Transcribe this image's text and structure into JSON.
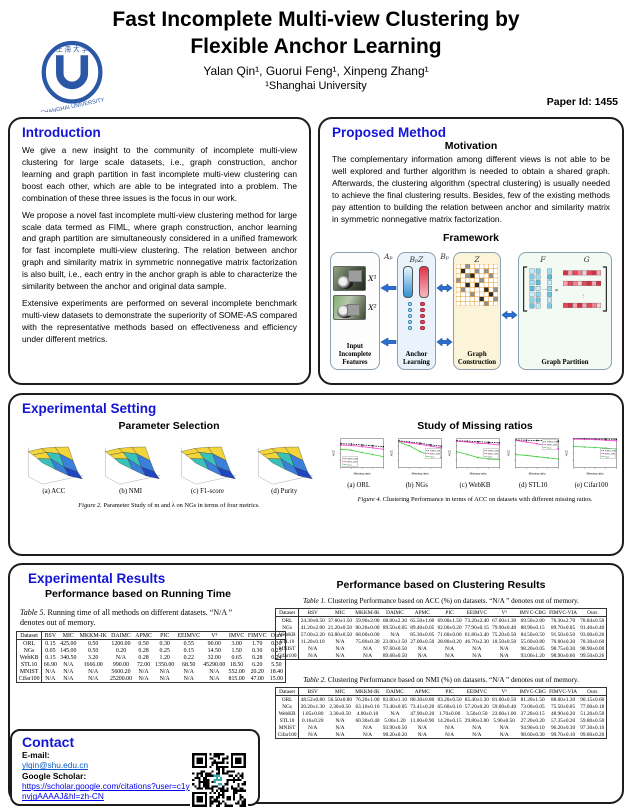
{
  "header": {
    "title_line1": "Fast Incomplete Multi-view Clustering by",
    "title_line2": "Flexible Anchor Learning",
    "authors": "Yalan Qin¹, Guorui Feng¹, Xinpeng Zhang¹",
    "affiliation": "¹Shanghai University",
    "paper_id": "Paper Id: 1455",
    "logo_name": "Shanghai University"
  },
  "introduction": {
    "heading": "Introduction",
    "paragraphs": [
      "We give a new insight to the community of incomplete multi-view clustering for large scale datasets, i.e., graph construction, anchor learning and graph partition in fast incomplete multi-view clustering can boost each other, which are able to be integrated into a problem. The combination of these three issues is the focus in our work.",
      "We propose a novel fast incomplete multi-view clustering method for large scale data termed as FIML, where graph construction, anchor learning and graph partition are simultaneously considered in a unified framework for fast incomplete multi-view clustering. The relation between anchor graph and similarity matrix in symmetric nonnegative matrix factorization is also built, i.e., each entry in the anchor graph is able to characterize the similarity between the anchor and original data sample.",
      "Extensive experiments are performed on several incomplete benchmark multi-view datasets to demonstrate the superiority of SOME-AS compared with the representative methods based on effectiveness and efficiency under different metrics."
    ]
  },
  "proposed_method": {
    "heading": "Proposed Method",
    "motivation_heading": "Motivation",
    "motivation_text": "The complementary information among different views is not able to be well explored and further algorithm is needed to obtain a shared graph. Afterwards, the clustering algorithm (spectral clustering) is usually needed to achieve the final clustering results. Besides, few of the existing methods pay attention to building the relation between anchor and similarity matrix in symmetric nonnegative matrix factorization.",
    "framework_heading": "Framework",
    "framework": {
      "view_labels": [
        "X¹",
        "X²"
      ],
      "arrow_labels": [
        "Aₚ",
        "Bₚ"
      ],
      "anchor_top_label": "BₚZ",
      "graph_top_label": "Z",
      "partition_top_labels": [
        "F",
        "G"
      ],
      "box_labels": [
        "Input Incomplete Features",
        "Anchor Learning",
        "Graph Construction",
        "Graph Partition"
      ]
    }
  },
  "experimental_setting": {
    "heading": "Experimental Setting",
    "parameter_selection": {
      "heading": "Parameter Selection",
      "plot_captions": [
        "(a) ACC",
        "(b) NMI",
        "(c) F1-score",
        "(d) Purity"
      ],
      "figure_label": "Figure 2.",
      "figure_text": "Parameter Study of m and λ on NGs in terms of four metrics."
    },
    "missing_ratios": {
      "heading": "Study of Missing ratios",
      "plot_captions": [
        "(a) ORL",
        "(b) NGs",
        "(c) WebKB",
        "(d) STL10",
        "(e) Cifar100"
      ],
      "figure_label": "Figure 4.",
      "figure_text": "Clustering Performance in terms of ACC on datasets with different missing ratios."
    }
  },
  "chart_data": [
    {
      "type": "line",
      "title": "(a) ORL",
      "xlabel": "Missing ratio",
      "ylabel": "ACC",
      "ylim": [
        0,
        1
      ],
      "x": [
        0.1,
        0.3,
        0.5,
        0.7,
        0.9
      ],
      "legend_pos": "bl",
      "series": [
        {
          "name": "FIMVC-VIA",
          "color": "#111111",
          "dash": true,
          "values": [
            0.82,
            0.81,
            0.78,
            0.75,
            0.72
          ]
        },
        {
          "name": "IMVC-CBG",
          "color": "#ee3ccc",
          "dash": false,
          "values": [
            0.78,
            0.76,
            0.72,
            0.68,
            0.63
          ]
        },
        {
          "name": "Ours",
          "color": "#44cc44",
          "dash": false,
          "values": [
            0.63,
            0.6,
            0.52,
            0.45,
            0.38
          ]
        }
      ]
    },
    {
      "type": "line",
      "title": "(b) NGs",
      "xlabel": "Missing ratio",
      "ylabel": "ACC",
      "ylim": [
        0,
        1
      ],
      "x": [
        0.1,
        0.3,
        0.5,
        0.7,
        0.9
      ],
      "legend_pos": "mr",
      "series": [
        {
          "name": "FIMVC-VIA",
          "color": "#111111",
          "dash": true,
          "values": [
            0.92,
            0.88,
            0.84,
            0.78,
            0.74
          ]
        },
        {
          "name": "IMVC-CBG",
          "color": "#ee3ccc",
          "dash": false,
          "values": [
            0.9,
            0.85,
            0.8,
            0.74,
            0.68
          ]
        },
        {
          "name": "Ours",
          "color": "#44cc44",
          "dash": false,
          "values": [
            0.88,
            0.75,
            0.55,
            0.42,
            0.35
          ]
        }
      ]
    },
    {
      "type": "line",
      "title": "(c) WebKB",
      "xlabel": "Missing ratio",
      "ylabel": "ACC",
      "ylim": [
        0,
        1
      ],
      "x": [
        0.1,
        0.3,
        0.5,
        0.7,
        0.9
      ],
      "legend_pos": "mr",
      "series": [
        {
          "name": "FIMVC-VIA",
          "color": "#111111",
          "dash": true,
          "values": [
            0.92,
            0.91,
            0.89,
            0.87,
            0.85
          ]
        },
        {
          "name": "IMVC-CBG",
          "color": "#ee3ccc",
          "dash": false,
          "values": [
            0.9,
            0.88,
            0.84,
            0.82,
            0.78
          ]
        },
        {
          "name": "Ours",
          "color": "#44cc44",
          "dash": false,
          "values": [
            0.55,
            0.45,
            0.35,
            0.3,
            0.28
          ]
        }
      ]
    },
    {
      "type": "line",
      "title": "(d) STL10",
      "xlabel": "Missing ratio",
      "ylabel": "ACC",
      "ylim": [
        0,
        1
      ],
      "x": [
        0.1,
        0.3,
        0.5,
        0.7,
        0.9
      ],
      "legend_pos": "tr",
      "series": [
        {
          "name": "FIMVC-VIA",
          "color": "#111111",
          "dash": true,
          "values": [
            0.95,
            0.94,
            0.93,
            0.92,
            0.91
          ]
        },
        {
          "name": "IMVC-CBG",
          "color": "#ee3ccc",
          "dash": false,
          "values": [
            0.93,
            0.88,
            0.82,
            0.74,
            0.65
          ]
        },
        {
          "name": "Ours",
          "color": "#44cc44",
          "dash": false,
          "values": [
            0.45,
            0.42,
            0.38,
            0.34,
            0.3
          ]
        }
      ]
    },
    {
      "type": "line",
      "title": "(e) Cifar100",
      "xlabel": "Missing ratio",
      "ylabel": "ACC",
      "ylim": [
        0,
        1
      ],
      "x": [
        0.1,
        0.3,
        0.5,
        0.7,
        0.9
      ],
      "legend_pos": "mr",
      "series": [
        {
          "name": "FIMVC-VIA",
          "color": "#111111",
          "dash": true,
          "values": [
            0.99,
            0.99,
            0.98,
            0.98,
            0.97
          ]
        },
        {
          "name": "IMVC-CBG",
          "color": "#ee3ccc",
          "dash": false,
          "values": [
            0.98,
            0.97,
            0.96,
            0.94,
            0.92
          ]
        },
        {
          "name": "Ours",
          "color": "#44cc44",
          "dash": false,
          "values": [
            0.73,
            0.71,
            0.69,
            0.67,
            0.64
          ]
        }
      ]
    },
    {
      "type": "3d-surface",
      "title": "Parameter Study of m and λ on NGs",
      "subplots": [
        "(a) ACC",
        "(b) NMI",
        "(c) F1-score",
        "(d) Purity"
      ]
    }
  ],
  "experimental_results": {
    "heading": "Experimental Results",
    "running_time": {
      "heading": "Performance based on Running Time",
      "caption_label": "Table 5.",
      "caption_text": "Running time of all methods on different datasets. “N/A ” denotes out of memory.",
      "table": {
        "headers": [
          "Dataset",
          "BSV",
          "MIC",
          "MKKM-IK",
          "DAIMC",
          "APMC",
          "PIC",
          "EEIMVC",
          "V³",
          "IMVC",
          "FIMVC",
          "Ours"
        ],
        "rows": [
          [
            "ORL",
            "0.15",
            "425.00",
            "0.50",
            "1200.00",
            "0.50",
            "0.30",
            "0.55",
            "90.00",
            "3.00",
            "1.70",
            "0.30"
          ],
          [
            "NGs",
            "0.05",
            "145.00",
            "0.50",
            "0.20",
            "0.28",
            "0.25",
            "0.15",
            "14.50",
            "1.50",
            "0.30",
            "0.25"
          ],
          [
            "WebKB",
            "0.15",
            "340.50",
            "3.20",
            "N/A",
            "0.28",
            "1.20",
            "0.22",
            "32.00",
            "0.65",
            "0.28",
            "0.24"
          ],
          [
            "STL10",
            "66.90",
            "N/A",
            "1666.00",
            "990.00",
            "72.00",
            "1350.00",
            "68.50",
            "45290.00",
            "18.50",
            "6.20",
            "5.50"
          ],
          [
            "MNIST",
            "N/A",
            "N/A",
            "N/A",
            "5600.20",
            "N/A",
            "N/A",
            "N/A",
            "N/A",
            "552.00",
            "20.20",
            "18.40"
          ],
          [
            "Cifar100",
            "N/A",
            "N/A",
            "N/A",
            "25200.00",
            "N/A",
            "N/A",
            "N/A",
            "N/A",
            "815.00",
            "47.00",
            "15.00"
          ]
        ]
      }
    },
    "clustering_results": {
      "heading": "Performance based on Clustering Results",
      "table1": {
        "caption_label": "Table 1.",
        "caption_text": "Clustering Performance based on ACC (%) on datasets. “N/A ” denotes out of memory.",
        "headers": [
          "Dataset",
          "BSV",
          "MIC",
          "MKKM-IK",
          "DAIMC",
          "APMC",
          "PIC",
          "EEIMVC",
          "V³",
          "IMVC-CBG",
          "FIMVC-VIA",
          "Ours"
        ],
        "rows": [
          [
            "ORL",
            "24.30±0.50",
            "37.60±1.50",
            "59.90±2.00",
            "68.00±2.30",
            "65.50±1.60",
            "69.00±1.50",
            "73.20±2.40",
            "67.00±1.30",
            "69.50±2.00",
            "76.30±2.70",
            "78.84±0.50"
          ],
          [
            "NGs",
            "41.20±2.00",
            "21.20±0.50",
            "80.20±0.00",
            "89.50±0.05",
            "89.40±0.05",
            "82.00±0.20",
            "77.90±0.15",
            "79.90±0.40",
            "88.90±0.15",
            "89.70±0.05",
            "91.40±0.40"
          ],
          [
            "WebKB",
            "57.00±2.20",
            "63.80±0.50",
            "68.00±0.00",
            "N/A",
            "85.30±0.05",
            "71.60±0.00",
            "61.80±3.40",
            "75.20±0.50",
            "84.50±0.50",
            "91.50±0.50",
            "93.00±0.26"
          ],
          [
            "STL10",
            "11.20±0.10",
            "N/A",
            "75.80±0.30",
            "23.00±1.50",
            "27.00±0.50",
            "28.80±0.20",
            "46.70±2.30",
            "18.50±0.50",
            "55.60±0.80",
            "76.00±0.30",
            "78.30±0.60"
          ],
          [
            "MNIST",
            "N/A",
            "N/A",
            "N/A",
            "97.60±0.50",
            "N/A",
            "N/A",
            "N/A",
            "N/A",
            "98.20±0.05",
            "98.75±0.30",
            "98.90±0.00"
          ],
          [
            "Cifar100",
            "N/A",
            "N/A",
            "N/A",
            "89.68±0.50",
            "N/A",
            "N/A",
            "N/A",
            "N/A",
            "93.00±1.20",
            "98.90±0.60",
            "99.50±0.26"
          ]
        ]
      },
      "table2": {
        "caption_label": "Table 2.",
        "caption_text": "Clustering Performance based on NMI (%) on datasets. “N/A ” denotes out of memory.",
        "headers": [
          "Dataset",
          "BSV",
          "MIC",
          "MKKM-IK",
          "DAIMC",
          "APMC",
          "PIC",
          "EEIMVC",
          "V³",
          "IMVC-CBG",
          "FIMVC-VIA",
          "Ours"
        ],
        "rows": [
          [
            "ORL",
            "48.52±0.80",
            "56.50±0.80",
            "76.20±1.00",
            "83.00±1.10",
            "80.30±0.80",
            "83.20±0.50",
            "85.40±1.30",
            "81.00±0.50",
            "81.20±1.50",
            "88.00±1.30",
            "90.15±0.60"
          ],
          [
            "NGs",
            "20.20±1.30",
            "2.30±0.50",
            "63.10±0.10",
            "73.40±0.05",
            "73.41±0.20",
            "65.60±0.10",
            "57.20±0.20",
            "59.00±0.40",
            "73.00±0.05",
            "75.50±0.05",
            "77.00±0.18"
          ],
          [
            "WebKB",
            "1.85±0.80",
            "3.30±0.50",
            "4.00±0.10",
            "N/A",
            "47.90±0.20",
            "1.70±0.00",
            "3.50±0.50",
            "23.60±1.00",
            "37.20±0.15",
            "48.90±0.20",
            "51.20±0.50"
          ],
          [
            "STL10",
            "0.16±0.20",
            "N/A",
            "60.30±0.40",
            "5.00±1.20",
            "11.00±0.90",
            "14.20±0.15",
            "29.80±3.00",
            "5.90±0.50",
            "27.20±0.20",
            "57.35±0.20",
            "59.80±0.50"
          ],
          [
            "MNIST",
            "N/A",
            "N/A",
            "N/A",
            "93.90±0.50",
            "N/A",
            "N/A",
            "N/A",
            "N/A",
            "94.90±0.10",
            "96.20±0.30",
            "97.30±0.10"
          ],
          [
            "Cifar100",
            "N/A",
            "N/A",
            "N/A",
            "98.20±0.20",
            "N/A",
            "N/A",
            "N/A",
            "N/A",
            "98.60±0.30",
            "99.70±0.10",
            "99.80±0.20"
          ]
        ]
      }
    }
  },
  "contact": {
    "heading": "Contact",
    "email_label": "E-mail:",
    "email": "ylqin@shu.edu.cn",
    "scholar_label": "Google Scholar:",
    "scholar_url": "https://scholar.google.com/citations?user=c1ynvjgAAAAJ&hl=zh-CN"
  },
  "colors": {
    "heading_blue": "#1414d6",
    "link_blue": "#0b5cc4",
    "arrow_blue": "#2b6fd4"
  }
}
